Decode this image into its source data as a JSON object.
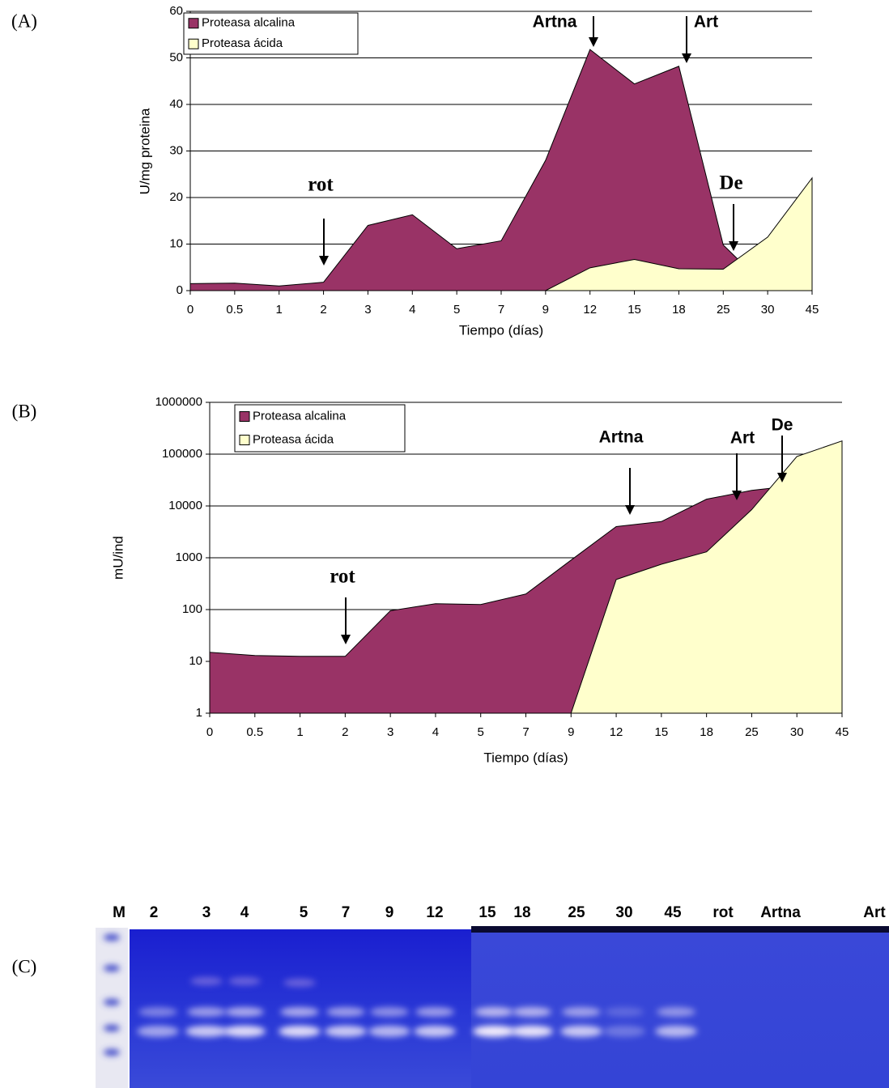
{
  "chart_data": [
    {
      "type": "area",
      "label": "(A)",
      "ylabel": "U/mg proteina",
      "xlabel": "Tiempo (días)",
      "categories": [
        "0",
        "0.5",
        "1",
        "2",
        "3",
        "4",
        "5",
        "7",
        "9",
        "12",
        "15",
        "18",
        "25",
        "30",
        "45"
      ],
      "series": [
        {
          "name": "Proteasa alcalina",
          "color": "#993366",
          "values": [
            1.5,
            1.6,
            1,
            1.8,
            14,
            16.3,
            9,
            10.7,
            28,
            51.8,
            44.4,
            48.2,
            9.8,
            0.5,
            0
          ]
        },
        {
          "name": "Proteasa ácida",
          "color": "#ffffcc",
          "values": [
            0,
            0,
            0,
            0,
            0,
            0,
            0,
            0,
            0,
            4.9,
            6.7,
            4.7,
            4.6,
            11.5,
            24.2
          ]
        }
      ],
      "ylim": [
        0,
        60
      ],
      "yticks": [
        0,
        10,
        20,
        30,
        40,
        50,
        60
      ],
      "log": false,
      "grid": true,
      "legend": "top-left",
      "annotations": [
        "rot",
        "Artna",
        "Art",
        "De"
      ]
    },
    {
      "type": "area",
      "label": "(B)",
      "ylabel": "mU/ind",
      "xlabel": "Tiempo (días)",
      "categories": [
        "0",
        "0.5",
        "1",
        "2",
        "3",
        "4",
        "5",
        "7",
        "9",
        "12",
        "15",
        "18",
        "25",
        "30",
        "45"
      ],
      "series": [
        {
          "name": "Proteasa alcalina",
          "color": "#993366",
          "values": [
            15,
            13,
            12.5,
            12.5,
            95,
            130,
            125,
            200,
            900,
            4000,
            5000,
            13500,
            20000,
            25000,
            30000
          ]
        },
        {
          "name": "Proteasa ácida",
          "color": "#ffffcc",
          "values": [
            null,
            null,
            null,
            null,
            null,
            null,
            null,
            null,
            1,
            380,
            750,
            1300,
            8500,
            90000,
            180000
          ]
        }
      ],
      "ylim": [
        1,
        1000000
      ],
      "yticks": [
        1,
        10,
        100,
        1000,
        10000,
        100000,
        1000000
      ],
      "log": true,
      "grid": true,
      "legend": "top-left",
      "annotations": [
        "rot",
        "Artna",
        "Art",
        "De"
      ]
    }
  ],
  "gel": {
    "label": "(C)",
    "lanes": [
      "M",
      "2",
      "3",
      "4",
      "5",
      "7",
      "9",
      "12",
      "15",
      "18",
      "25",
      "30",
      "45",
      "rot",
      "Artna",
      "Art"
    ]
  }
}
